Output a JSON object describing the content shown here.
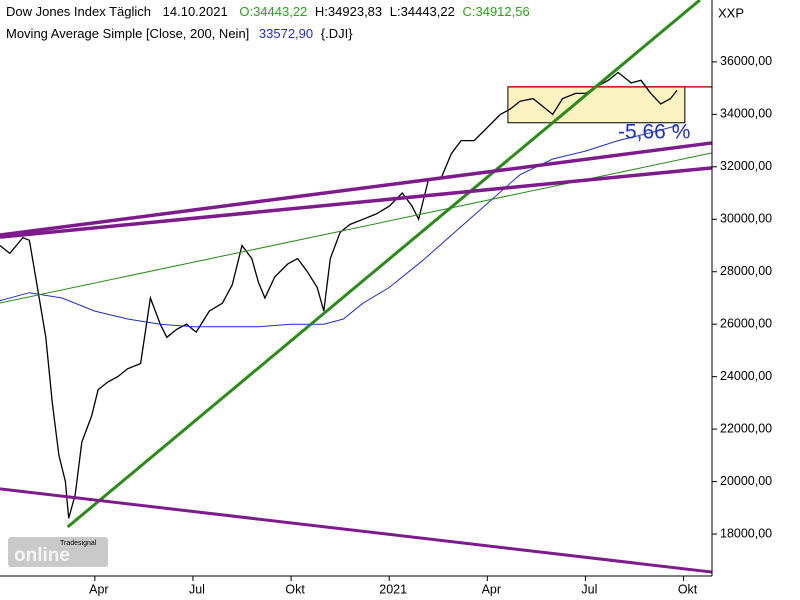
{
  "chart_data": {
    "type": "line",
    "date": "14.10.2021",
    "open": "O:34443,22",
    "high": "H:34923,83",
    "low": "L:34443,22",
    "close": "C:34912,56",
    "ma_value": "33572,90",
    "symbol": "{.DJI}",
    "axis_label": "XXP",
    "annotation": "-5,66 %",
    "watermark": [
      "Tradesignal",
      "online"
    ],
    "xlim": [
      0.1,
      21.87
    ],
    "xticks": [
      {
        "value": 3,
        "label": "Apr"
      },
      {
        "value": 6,
        "label": "Jul"
      },
      {
        "value": 9,
        "label": "Okt"
      },
      {
        "value": 12,
        "label": "2021"
      },
      {
        "value": 15,
        "label": "Apr"
      },
      {
        "value": 18,
        "label": "Jul"
      },
      {
        "value": 21,
        "label": "Okt"
      }
    ],
    "ylim": [
      16400,
      38360
    ],
    "yticks": [
      {
        "value": 18000,
        "label": "18000,00"
      },
      {
        "value": 20000,
        "label": "20000,00"
      },
      {
        "value": 22000,
        "label": "22000,00"
      },
      {
        "value": 24000,
        "label": "24000,00"
      },
      {
        "value": 26000,
        "label": "26000,00"
      },
      {
        "value": 28000,
        "label": "28000,00"
      },
      {
        "value": 30000,
        "label": "30000,00"
      },
      {
        "value": 32000,
        "label": "32000,00"
      },
      {
        "value": 34000,
        "label": "34000,00"
      },
      {
        "value": 36000,
        "label": "36000,00"
      }
    ],
    "series": [
      {
        "name": "Dow Jones Index Täglich",
        "color": "#000000",
        "x": [
          0.1,
          0.4,
          0.8,
          1.0,
          1.3,
          1.5,
          1.7,
          1.9,
          2.1,
          2.2,
          2.4,
          2.6,
          2.9,
          3.1,
          3.4,
          3.7,
          4.0,
          4.4,
          4.7,
          5.0,
          5.2,
          5.5,
          5.8,
          6.1,
          6.5,
          6.9,
          7.2,
          7.5,
          7.8,
          8.0,
          8.2,
          8.5,
          8.9,
          9.2,
          9.5,
          9.8,
          10.0,
          10.2,
          10.5,
          10.8,
          11.2,
          11.6,
          12.0,
          12.4,
          12.7,
          12.9,
          13.2,
          13.6,
          13.9,
          14.2,
          14.6,
          15.0,
          15.4,
          15.7,
          16.0,
          16.4,
          16.7,
          17.0,
          17.3,
          17.7,
          18.0,
          18.4,
          18.7,
          19.0,
          19.4,
          19.7,
          20.0,
          20.3,
          20.6,
          20.8
        ],
        "values": [
          29000,
          28700,
          29300,
          29200,
          27000,
          25500,
          23000,
          21000,
          20000,
          18600,
          19500,
          21500,
          22500,
          23500,
          23800,
          24000,
          24300,
          24500,
          27000,
          26000,
          25500,
          25800,
          26000,
          25700,
          26500,
          26800,
          27500,
          29000,
          28500,
          27600,
          27000,
          27800,
          28300,
          28500,
          28000,
          27400,
          26500,
          28500,
          29500,
          29800,
          30000,
          30200,
          30500,
          31000,
          30500,
          30000,
          31500,
          31600,
          32500,
          33000,
          33000,
          33500,
          34000,
          34200,
          34500,
          34600,
          34300,
          34000,
          34600,
          34800,
          34800,
          35100,
          35300,
          35600,
          35200,
          35300,
          34800,
          34400,
          34600,
          34912
        ]
      },
      {
        "name": "Moving Average Simple [Close, 200, Nein]",
        "color": "#1f2fbf",
        "x": [
          0.1,
          1.0,
          2.0,
          3.0,
          4.0,
          5.0,
          6.0,
          7.0,
          8.0,
          9.0,
          10.0,
          10.6,
          11.2,
          12.0,
          13.0,
          14.0,
          15.0,
          16.0,
          17.0,
          18.0,
          19.0,
          20.0,
          20.8
        ],
        "values": [
          26900,
          27200,
          27000,
          26500,
          26200,
          26000,
          25900,
          25900,
          25900,
          26000,
          26000,
          26200,
          26800,
          27400,
          28400,
          29500,
          30600,
          31700,
          32300,
          32600,
          33000,
          33300,
          33573
        ]
      }
    ],
    "trendlines": [
      {
        "color": "#2a8a1a",
        "width": 3,
        "x": [
          2.17,
          21.5
        ],
        "y": [
          18270,
          38360
        ]
      },
      {
        "color": "#2a8a1a",
        "width": 1,
        "x": [
          0.1,
          21.87
        ],
        "y": [
          26810,
          32530
        ]
      },
      {
        "color": "#7d1a8c",
        "width": 3.5,
        "x": [
          0.1,
          21.87
        ],
        "y": [
          29400,
          32910
        ]
      },
      {
        "color": "#7d1a8c",
        "width": 3.5,
        "x": [
          0.1,
          21.87
        ],
        "y": [
          29320,
          31960
        ]
      },
      {
        "color": "#7d1a8c",
        "width": 3,
        "x": [
          0.1,
          21.87
        ],
        "y": [
          19720,
          16550
        ]
      }
    ],
    "range_box": {
      "x": [
        15.63,
        21.04
      ],
      "y": [
        33680,
        35050
      ],
      "fill": "#fbf3bf",
      "stroke": "#000000"
    },
    "resistance": {
      "x": [
        15.63,
        21.87
      ],
      "y": 35050,
      "color": "#d01010"
    }
  }
}
